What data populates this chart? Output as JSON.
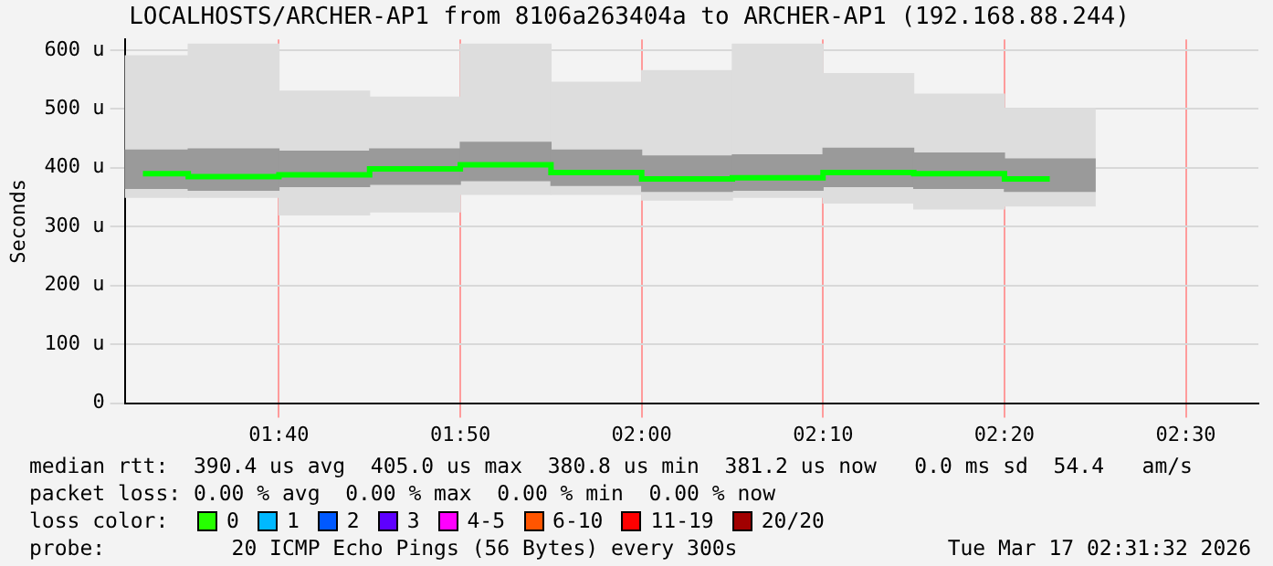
{
  "chart_data": {
    "type": "bar",
    "title": "LOCALHOSTS/ARCHER-AP1 from 8106a263404a to ARCHER-AP1 (192.168.88.244)",
    "ylabel": "Seconds",
    "x": [
      1.5417,
      1.625,
      1.7083,
      1.7917,
      1.875,
      1.9583,
      2.0417,
      2.125,
      2.2083,
      2.2917,
      2.375
    ],
    "series": [
      {
        "color": "#dddddd",
        "base": [
          350,
          350,
          320,
          325,
          355,
          355,
          345,
          350,
          340,
          330,
          335
        ],
        "values": [
          240,
          260,
          210,
          195,
          255,
          190,
          220,
          260,
          220,
          195,
          165
        ]
      },
      {
        "type": "bar",
        "color": "#9a9a9a",
        "base": [
          365,
          362,
          368,
          372,
          378,
          370,
          360,
          362,
          368,
          365,
          360
        ],
        "values": [
          65,
          70,
          60,
          60,
          65,
          60,
          60,
          60,
          65,
          60,
          55
        ]
      },
      {
        "type": "step",
        "color": "#00ff00",
        "values": [
          390,
          385,
          388,
          398,
          405,
          392,
          381,
          383,
          392,
          390,
          381
        ]
      }
    ],
    "xlim": [
      1.525,
      2.5667
    ],
    "xticks": [
      {
        "value": 1.66667,
        "label": "01:40"
      },
      {
        "value": 1.83333,
        "label": "01:50"
      },
      {
        "value": 2,
        "label": "02:00"
      },
      {
        "value": 2.16667,
        "label": "02:10"
      },
      {
        "value": 2.33333,
        "label": "02:20"
      },
      {
        "value": 2.5,
        "label": "02:30"
      }
    ],
    "ylim": [
      0,
      618
    ],
    "yticks": [
      0,
      {
        "value": 100,
        "label": "100 u"
      },
      {
        "value": 200,
        "label": "200 u"
      },
      {
        "value": 300,
        "label": "300 u"
      },
      {
        "value": 400,
        "label": "400 u"
      },
      {
        "value": 500,
        "label": "500 u"
      },
      {
        "value": 600,
        "label": "600 u"
      }
    ],
    "grid": true,
    "legend": false,
    "annotations": [
      "median rtt:  390.4 us avg  405.0 us max  380.8 us min  381.2 us now   0.0 ms sd  54.4   am/s",
      "packet loss: 0.00 % avg  0.00 % max  0.00 % min  0.00 % now",
      "loss color:",
      "0",
      "1",
      "2",
      "3",
      "4-5",
      "6-10",
      "11-19",
      "20/20",
      "probe:          20 ICMP Echo Pings (56 Bytes) every 300s",
      "Tue Mar 17 02:31:32 2026"
    ]
  }
}
